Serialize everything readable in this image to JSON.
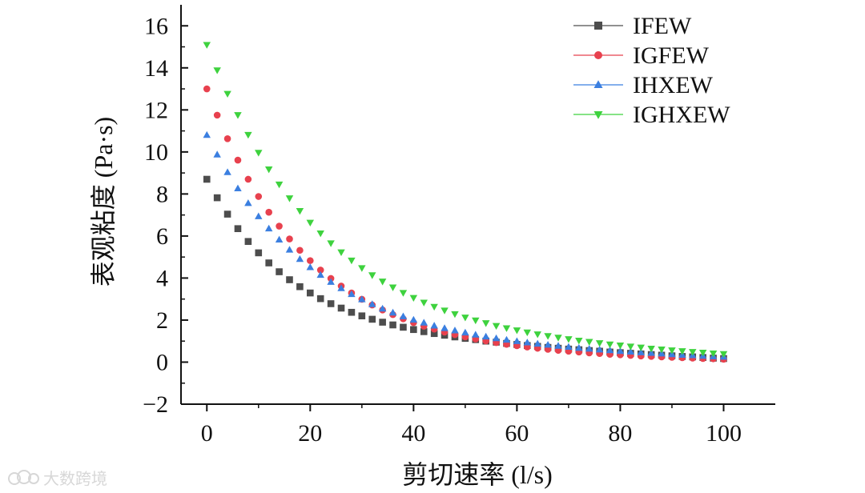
{
  "chart_data": {
    "type": "scatter",
    "title": "",
    "xlabel": "剪切速率 (l/s)",
    "ylabel": "表观粘度 (Pa·s)",
    "xlim": [
      -5,
      110
    ],
    "ylim": [
      -2,
      17
    ],
    "xticks": [
      0,
      20,
      40,
      60,
      80,
      100
    ],
    "yticks": [
      -2,
      0,
      2,
      4,
      6,
      8,
      10,
      12,
      14,
      16
    ],
    "xtick_labels": [
      "0",
      "20",
      "40",
      "60",
      "80",
      "100"
    ],
    "ytick_labels": [
      "−2",
      "0",
      "2",
      "4",
      "6",
      "8",
      "10",
      "12",
      "14",
      "16"
    ],
    "grid": false,
    "legend_position": "top-right",
    "x": [
      0,
      2,
      4,
      6,
      8,
      10,
      12,
      14,
      16,
      18,
      20,
      22,
      24,
      26,
      28,
      30,
      32,
      34,
      36,
      38,
      40,
      42,
      44,
      46,
      48,
      50,
      52,
      54,
      56,
      58,
      60,
      62,
      64,
      66,
      68,
      70,
      72,
      74,
      76,
      78,
      80,
      82,
      84,
      86,
      88,
      90,
      92,
      94,
      96,
      98,
      100
    ],
    "series": [
      {
        "name": "IFEW",
        "color": "#4d4d4d",
        "marker": "square",
        "values": [
          8.7,
          7.82,
          7.04,
          6.35,
          5.74,
          5.2,
          4.72,
          4.3,
          3.92,
          3.59,
          3.29,
          3.02,
          2.78,
          2.57,
          2.37,
          2.2,
          2.04,
          1.9,
          1.77,
          1.66,
          1.55,
          1.45,
          1.36,
          1.28,
          1.2,
          1.13,
          1.07,
          1.0,
          0.95,
          0.89,
          0.84,
          0.79,
          0.75,
          0.7,
          0.66,
          0.62,
          0.59,
          0.55,
          0.52,
          0.48,
          0.45,
          0.42,
          0.39,
          0.36,
          0.33,
          0.3,
          0.27,
          0.25,
          0.22,
          0.19,
          0.17
        ]
      },
      {
        "name": "IGFEW",
        "color": "#e8414e",
        "marker": "circle",
        "values": [
          13.0,
          11.75,
          10.63,
          9.61,
          8.7,
          7.88,
          7.13,
          6.47,
          5.86,
          5.32,
          4.83,
          4.38,
          3.98,
          3.62,
          3.29,
          2.99,
          2.72,
          2.48,
          2.26,
          2.06,
          1.88,
          1.71,
          1.57,
          1.43,
          1.31,
          1.2,
          1.1,
          1.01,
          0.93,
          0.85,
          0.78,
          0.72,
          0.66,
          0.61,
          0.56,
          0.52,
          0.48,
          0.44,
          0.41,
          0.37,
          0.35,
          0.32,
          0.29,
          0.27,
          0.25,
          0.23,
          0.21,
          0.19,
          0.17,
          0.16,
          0.14
        ]
      },
      {
        "name": "IHXEW",
        "color": "#3b7fe0",
        "marker": "triangle-up",
        "values": [
          10.8,
          9.87,
          9.03,
          8.26,
          7.56,
          6.93,
          6.35,
          5.82,
          5.34,
          4.9,
          4.51,
          4.14,
          3.81,
          3.51,
          3.23,
          2.98,
          2.75,
          2.54,
          2.35,
          2.17,
          2.01,
          1.87,
          1.73,
          1.61,
          1.5,
          1.4,
          1.3,
          1.21,
          1.13,
          1.06,
          0.99,
          0.93,
          0.87,
          0.82,
          0.77,
          0.72,
          0.67,
          0.63,
          0.59,
          0.56,
          0.52,
          0.49,
          0.46,
          0.43,
          0.4,
          0.37,
          0.34,
          0.32,
          0.29,
          0.27,
          0.25
        ]
      },
      {
        "name": "IGHXEW",
        "color": "#3ed23e",
        "marker": "triangle-down",
        "values": [
          15.1,
          13.89,
          12.77,
          11.76,
          10.82,
          9.97,
          9.18,
          8.46,
          7.8,
          7.2,
          6.64,
          6.13,
          5.66,
          5.23,
          4.84,
          4.48,
          4.14,
          3.84,
          3.56,
          3.3,
          3.06,
          2.84,
          2.64,
          2.46,
          2.29,
          2.13,
          1.99,
          1.86,
          1.73,
          1.62,
          1.52,
          1.42,
          1.33,
          1.25,
          1.17,
          1.1,
          1.03,
          0.97,
          0.91,
          0.85,
          0.8,
          0.75,
          0.7,
          0.65,
          0.61,
          0.57,
          0.53,
          0.49,
          0.46,
          0.42,
          0.39
        ]
      }
    ]
  },
  "watermark": {
    "text": "大数跨境",
    "icon": "cloud-logo-icon"
  }
}
